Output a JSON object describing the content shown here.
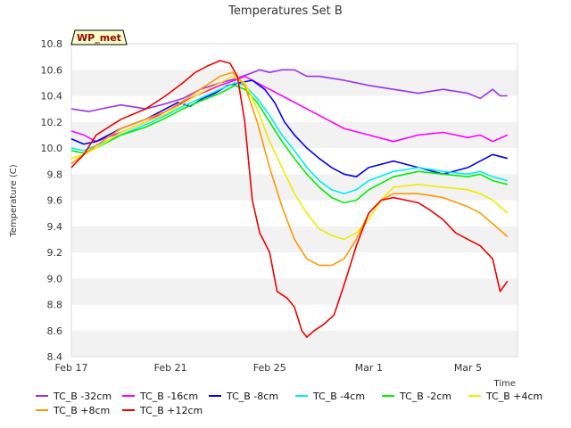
{
  "chart_data": {
    "type": "line",
    "title": "Temperatures Set B",
    "xlabel": "Time",
    "ylabel": "Temperature (C)",
    "ylim": [
      8.4,
      10.8
    ],
    "yticks": [
      8.4,
      8.6,
      8.8,
      9.0,
      9.2,
      9.4,
      9.6,
      9.8,
      10.0,
      10.2,
      10.4,
      10.6,
      10.8
    ],
    "xlim": [
      0,
      18
    ],
    "xticks": [
      {
        "x": 0,
        "label": "Feb 17"
      },
      {
        "x": 4,
        "label": "Feb 21"
      },
      {
        "x": 8,
        "label": "Feb 25"
      },
      {
        "x": 12,
        "label": "Mar 1"
      },
      {
        "x": 16,
        "label": "Mar 5"
      }
    ],
    "x_units": "days after Feb 17",
    "grid": "horizontal bands",
    "legend": "bottom",
    "annotation": "WP_met",
    "series": [
      {
        "name": "TC_B -32cm",
        "color": "#9933ee",
        "x": [
          0,
          0.7,
          1.2,
          2,
          3,
          3.8,
          4.5,
          5.2,
          6,
          6.6,
          7.2,
          7.6,
          8,
          8.5,
          9,
          9.5,
          10,
          11,
          12,
          13,
          14,
          15,
          16,
          16.5,
          17,
          17.3,
          17.6
        ],
        "y": [
          10.3,
          10.28,
          10.3,
          10.33,
          10.3,
          10.34,
          10.38,
          10.45,
          10.5,
          10.53,
          10.57,
          10.6,
          10.58,
          10.6,
          10.6,
          10.55,
          10.55,
          10.52,
          10.48,
          10.45,
          10.42,
          10.45,
          10.42,
          10.38,
          10.45,
          10.4,
          10.4
        ]
      },
      {
        "name": "TC_B -16cm",
        "color": "#ff00ff",
        "x": [
          0,
          0.5,
          1,
          2,
          3,
          4,
          5,
          6,
          6.6,
          7,
          7.5,
          8,
          8.5,
          9,
          10,
          11,
          12,
          13,
          14,
          15,
          16,
          16.5,
          17,
          17.6
        ],
        "y": [
          10.13,
          10.1,
          10.05,
          10.12,
          10.2,
          10.3,
          10.4,
          10.48,
          10.52,
          10.55,
          10.5,
          10.45,
          10.4,
          10.35,
          10.25,
          10.15,
          10.1,
          10.05,
          10.1,
          10.12,
          10.08,
          10.1,
          10.05,
          10.1
        ]
      },
      {
        "name": "TC_B -8cm",
        "color": "#0000ee",
        "x": [
          0,
          0.5,
          1,
          2,
          3,
          3.8,
          4.3,
          4.8,
          5.3,
          5.8,
          6.3,
          6.8,
          7.3,
          7.8,
          8.2,
          8.6,
          9,
          9.5,
          10,
          10.5,
          11,
          11.5,
          12,
          13,
          14,
          15,
          16,
          16.5,
          17,
          17.6
        ],
        "y": [
          10.07,
          10.03,
          10.05,
          10.15,
          10.22,
          10.3,
          10.35,
          10.32,
          10.38,
          10.42,
          10.48,
          10.5,
          10.52,
          10.45,
          10.35,
          10.2,
          10.1,
          10.0,
          9.92,
          9.85,
          9.8,
          9.78,
          9.85,
          9.9,
          9.85,
          9.8,
          9.85,
          9.9,
          9.95,
          9.92
        ]
      },
      {
        "name": "TC_B -4cm",
        "color": "#00eeee",
        "x": [
          0,
          0.5,
          1,
          2,
          3,
          3.8,
          4.5,
          5.2,
          6,
          6.6,
          7,
          7.5,
          8,
          8.5,
          9,
          9.5,
          10,
          10.5,
          11,
          11.5,
          12,
          13,
          14,
          15,
          16,
          16.5,
          17,
          17.6
        ],
        "y": [
          10.0,
          9.98,
          10.02,
          10.1,
          10.18,
          10.25,
          10.32,
          10.38,
          10.45,
          10.5,
          10.48,
          10.38,
          10.25,
          10.1,
          9.98,
          9.85,
          9.75,
          9.68,
          9.65,
          9.68,
          9.75,
          9.82,
          9.85,
          9.82,
          9.8,
          9.82,
          9.78,
          9.75
        ]
      },
      {
        "name": "TC_B -2cm",
        "color": "#00ee00",
        "x": [
          0,
          0.5,
          1,
          2,
          3,
          3.8,
          4.5,
          5.2,
          6,
          6.6,
          7,
          7.5,
          8,
          8.5,
          9,
          9.5,
          10,
          10.5,
          11,
          11.5,
          12,
          13,
          14,
          15,
          16,
          16.5,
          17,
          17.6
        ],
        "y": [
          9.98,
          9.96,
          10.0,
          10.1,
          10.16,
          10.23,
          10.3,
          10.36,
          10.42,
          10.48,
          10.45,
          10.35,
          10.2,
          10.05,
          9.92,
          9.8,
          9.7,
          9.62,
          9.58,
          9.6,
          9.68,
          9.78,
          9.82,
          9.8,
          9.78,
          9.8,
          9.75,
          9.72
        ]
      },
      {
        "name": "TC_B +4cm",
        "color": "#eeee00",
        "x": [
          0,
          0.5,
          1,
          2,
          3,
          3.8,
          4.5,
          5.2,
          6,
          6.5,
          7,
          7.5,
          8,
          8.5,
          9,
          9.5,
          10,
          10.5,
          11,
          11.5,
          12,
          12.5,
          13,
          14,
          15,
          16,
          16.5,
          17,
          17.6
        ],
        "y": [
          9.92,
          9.95,
          10.0,
          10.12,
          10.2,
          10.26,
          10.34,
          10.42,
          10.5,
          10.55,
          10.5,
          10.3,
          10.05,
          9.85,
          9.65,
          9.5,
          9.38,
          9.33,
          9.3,
          9.35,
          9.45,
          9.6,
          9.7,
          9.72,
          9.7,
          9.68,
          9.65,
          9.6,
          9.5
        ]
      },
      {
        "name": "TC_B +8cm",
        "color": "#ff9900",
        "x": [
          0,
          0.5,
          1,
          2,
          3,
          3.8,
          4.5,
          5.2,
          6,
          6.5,
          7,
          7.5,
          8,
          8.5,
          9,
          9.5,
          10,
          10.5,
          11,
          11.5,
          12,
          12.5,
          13,
          14,
          15,
          16,
          16.5,
          17,
          17.6
        ],
        "y": [
          9.88,
          9.95,
          10.02,
          10.15,
          10.22,
          10.28,
          10.36,
          10.45,
          10.55,
          10.58,
          10.48,
          10.2,
          9.85,
          9.55,
          9.3,
          9.15,
          9.1,
          9.1,
          9.15,
          9.3,
          9.5,
          9.6,
          9.65,
          9.65,
          9.62,
          9.55,
          9.5,
          9.42,
          9.32
        ]
      },
      {
        "name": "TC_B +12cm",
        "color": "#ee0000",
        "x": [
          0,
          0.5,
          1,
          2,
          3,
          3.8,
          4.5,
          5,
          5.5,
          6,
          6.4,
          6.7,
          7,
          7.3,
          7.6,
          8,
          8.3,
          8.7,
          9,
          9.3,
          9.5,
          9.8,
          10.2,
          10.6,
          11,
          11.5,
          12,
          12.5,
          13,
          13.5,
          14,
          14.5,
          15,
          15.5,
          16,
          16.5,
          17,
          17.3,
          17.6
        ],
        "y": [
          9.85,
          9.95,
          10.1,
          10.22,
          10.3,
          10.4,
          10.5,
          10.58,
          10.63,
          10.67,
          10.65,
          10.55,
          10.2,
          9.6,
          9.35,
          9.2,
          8.9,
          8.85,
          8.78,
          8.6,
          8.55,
          8.6,
          8.65,
          8.72,
          8.95,
          9.25,
          9.5,
          9.6,
          9.62,
          9.6,
          9.58,
          9.52,
          9.45,
          9.35,
          9.3,
          9.25,
          9.15,
          8.9,
          8.98
        ]
      }
    ]
  }
}
